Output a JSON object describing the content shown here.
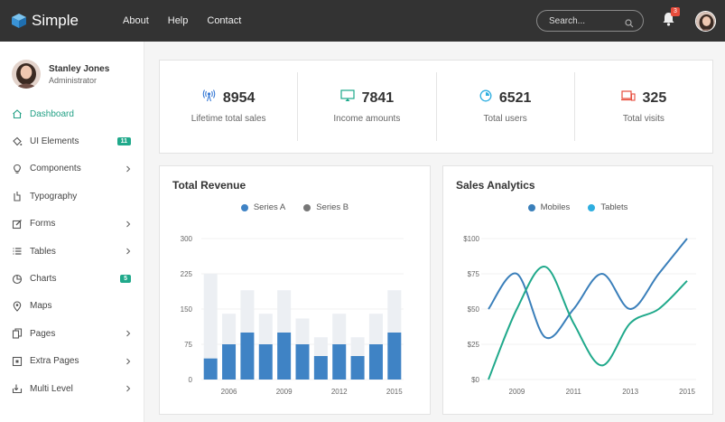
{
  "brand": {
    "name": "Simple"
  },
  "nav": [
    {
      "label": "About"
    },
    {
      "label": "Help"
    },
    {
      "label": "Contact"
    }
  ],
  "search": {
    "placeholder": "Search..."
  },
  "notifications": {
    "count": "3"
  },
  "user": {
    "name": "Stanley Jones",
    "role": "Administrator"
  },
  "menu": [
    {
      "label": "Dashboard",
      "icon": "home-icon",
      "active": true
    },
    {
      "label": "UI Elements",
      "icon": "paint-bucket-icon",
      "badge": "11"
    },
    {
      "label": "Components",
      "icon": "lightbulb-icon",
      "chevron": true
    },
    {
      "label": "Typography",
      "icon": "text-cursor-icon"
    },
    {
      "label": "Forms",
      "icon": "edit-icon",
      "chevron": true
    },
    {
      "label": "Tables",
      "icon": "list-icon",
      "chevron": true
    },
    {
      "label": "Charts",
      "icon": "pie-chart-icon",
      "badge": "5"
    },
    {
      "label": "Maps",
      "icon": "map-pin-icon"
    },
    {
      "label": "Pages",
      "icon": "copy-icon",
      "chevron": true
    },
    {
      "label": "Extra Pages",
      "icon": "square-dot-icon",
      "chevron": true
    },
    {
      "label": "Multi Level",
      "icon": "level-icon",
      "chevron": true
    }
  ],
  "stats": [
    {
      "value": "8954",
      "label": "Lifetime total sales",
      "icon": "broadcast-icon",
      "color": "#3a7bd5"
    },
    {
      "value": "7841",
      "label": "Income amounts",
      "icon": "monitor-icon",
      "color": "#1aa88a"
    },
    {
      "value": "6521",
      "label": "Total users",
      "icon": "pie-icon",
      "color": "#2eaee0"
    },
    {
      "value": "325",
      "label": "Total visits",
      "icon": "devices-icon",
      "color": "#e74c3c"
    }
  ],
  "chart_data": [
    {
      "type": "bar",
      "title": "Total Revenue",
      "x": [
        2005,
        2006,
        2007,
        2008,
        2009,
        2010,
        2011,
        2012,
        2013,
        2014,
        2015
      ],
      "xticks": [
        "2006",
        "2009",
        "2012",
        "2015"
      ],
      "series": [
        {
          "name": "Series A",
          "color": "#3f83c5",
          "values": [
            45,
            75,
            100,
            75,
            100,
            75,
            50,
            75,
            50,
            75,
            100
          ]
        },
        {
          "name": "Series B",
          "color": "#eceff3",
          "values": [
            180,
            65,
            90,
            65,
            90,
            55,
            40,
            65,
            40,
            65,
            90
          ]
        }
      ],
      "stacked": true,
      "yticks": [
        "0",
        "75",
        "150",
        "225",
        "300"
      ],
      "ylim": [
        0,
        300
      ]
    },
    {
      "type": "line",
      "title": "Sales Analytics",
      "x": [
        2008,
        2009,
        2010,
        2011,
        2012,
        2013,
        2014,
        2015
      ],
      "xticks": [
        "2009",
        "2011",
        "2013",
        "2015"
      ],
      "series": [
        {
          "name": "Mobiles",
          "color": "#3a7fba",
          "values": [
            50,
            75,
            30,
            50,
            75,
            50,
            75,
            100
          ]
        },
        {
          "name": "Tablets",
          "color": "#20a98b",
          "values": [
            0,
            50,
            80,
            40,
            10,
            40,
            50,
            70
          ]
        }
      ],
      "yticks": [
        "$0",
        "$25",
        "$50",
        "$75",
        "$100"
      ],
      "ylim": [
        0,
        100
      ]
    }
  ]
}
